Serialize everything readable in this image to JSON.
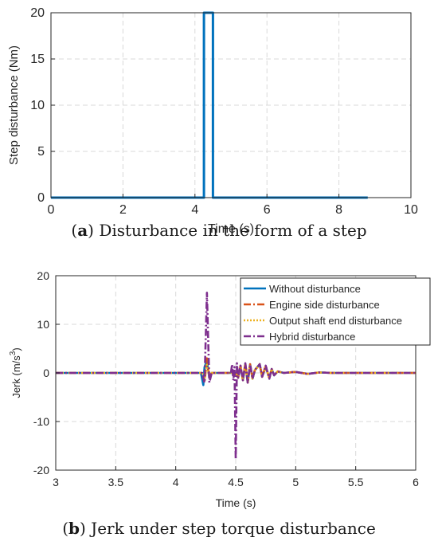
{
  "chart_data": [
    {
      "type": "line",
      "xlabel": "Time (s)",
      "ylabel": "Step disturbance (Nm)",
      "xlim": [
        0,
        10
      ],
      "ylim": [
        0,
        20
      ],
      "xticks": [
        0,
        2,
        4,
        6,
        8,
        10
      ],
      "yticks": [
        0,
        5,
        10,
        15,
        20
      ],
      "grid": true,
      "series": [
        {
          "color": "#0072bd",
          "x": [
            0,
            4.25,
            4.25,
            4.5,
            4.5,
            8.8
          ],
          "y": [
            0,
            0,
            20,
            20,
            0,
            0
          ]
        }
      ]
    },
    {
      "type": "line",
      "xlabel": "Time (s)",
      "ylabel": "Jerk (m/s^3)",
      "xlim": [
        3,
        6
      ],
      "ylim": [
        -20,
        20
      ],
      "xticks": [
        3,
        3.5,
        4,
        4.5,
        5,
        5.5,
        6
      ],
      "yticks": [
        -20,
        -10,
        0,
        10,
        20
      ],
      "grid": true,
      "legend_position": "top-right",
      "series": [
        {
          "name": "Without disturbance",
          "color": "#0072bd",
          "dash": "solid",
          "x": [
            3.0,
            4.21,
            4.23,
            4.24,
            4.26,
            4.28,
            4.3,
            4.5,
            4.52,
            4.54,
            4.56,
            4.58,
            4.6,
            4.62,
            4.64,
            4.66,
            4.7,
            4.72,
            4.75,
            4.78,
            4.8,
            4.82,
            4.85,
            4.9,
            5.0,
            5.1,
            5.2,
            5.3,
            6.0
          ],
          "y": [
            0,
            0,
            -2.5,
            1.2,
            2.5,
            -1.0,
            0,
            0,
            -1.0,
            1.2,
            -1.5,
            1.8,
            -2.0,
            1.8,
            -1.2,
            0.6,
            1.8,
            -0.8,
            1.2,
            -1.0,
            0.8,
            -0.5,
            0.3,
            0,
            0.2,
            -0.2,
            0.1,
            0,
            0
          ]
        },
        {
          "name": "Engine side disturbance",
          "color": "#d95319",
          "dash": "dashdot",
          "x": [
            3.0,
            4.22,
            4.24,
            4.26,
            4.28,
            4.3,
            4.5,
            4.52,
            4.54,
            4.56,
            4.58,
            4.6,
            4.62,
            4.64,
            4.66,
            4.7,
            4.72,
            4.75,
            4.78,
            4.8,
            4.82,
            4.85,
            4.9,
            5.0,
            5.1,
            5.2,
            5.3,
            6.0
          ],
          "y": [
            0,
            0,
            -2.0,
            3.0,
            -1.0,
            0,
            0,
            -1.0,
            1.5,
            -1.5,
            2.0,
            -2.0,
            1.8,
            -1.2,
            0.6,
            1.8,
            -0.8,
            1.5,
            -1.2,
            0.8,
            -0.5,
            0.3,
            0,
            0.2,
            -0.2,
            0.1,
            0,
            0
          ]
        },
        {
          "name": "Output shaft end disturbance",
          "color": "#edb120",
          "dash": "dotted",
          "x": [
            3.0,
            4.22,
            4.24,
            4.26,
            4.28,
            4.3,
            4.5,
            4.52,
            4.54,
            4.56,
            4.58,
            4.6,
            4.62,
            4.64,
            4.66,
            4.7,
            4.72,
            4.75,
            4.78,
            4.8,
            4.82,
            4.85,
            4.9,
            5.0,
            5.1,
            5.2,
            5.3,
            6.0
          ],
          "y": [
            0,
            0,
            -1.5,
            2.0,
            -1.0,
            0,
            0,
            -1.0,
            1.2,
            -1.5,
            1.8,
            -2.0,
            1.8,
            -1.2,
            0.6,
            1.6,
            -0.8,
            1.2,
            -1.0,
            0.8,
            -0.5,
            0.3,
            0,
            0.2,
            -0.2,
            0.1,
            0,
            0
          ]
        },
        {
          "name": "Hybrid disturbance",
          "color": "#7e2f8e",
          "dash": "dashdot",
          "x": [
            3.0,
            4.22,
            4.24,
            4.26,
            4.28,
            4.3,
            4.46,
            4.47,
            4.48,
            4.49,
            4.5,
            4.51,
            4.52,
            4.54,
            4.56,
            4.58,
            4.6,
            4.62,
            4.64,
            4.66,
            4.7,
            4.72,
            4.75,
            4.78,
            4.8,
            4.82,
            4.85,
            4.9,
            5.0,
            5.1,
            5.2,
            5.3,
            6.0
          ],
          "y": [
            0,
            0,
            -2.0,
            16.5,
            -2.0,
            0,
            0,
            1.8,
            -1.5,
            1.2,
            -17.8,
            2.0,
            -1.0,
            1.5,
            -1.5,
            2.0,
            -2.0,
            1.8,
            -1.2,
            0.6,
            1.8,
            -0.8,
            1.5,
            -1.2,
            0.8,
            -0.5,
            0.3,
            0,
            0.2,
            -0.2,
            0.1,
            0,
            0
          ]
        }
      ]
    }
  ],
  "captions": {
    "a_label": "a",
    "a_text": " Disturbance in the form of a step",
    "b_label": "b",
    "b_text": " Jerk under step torque disturbance"
  }
}
